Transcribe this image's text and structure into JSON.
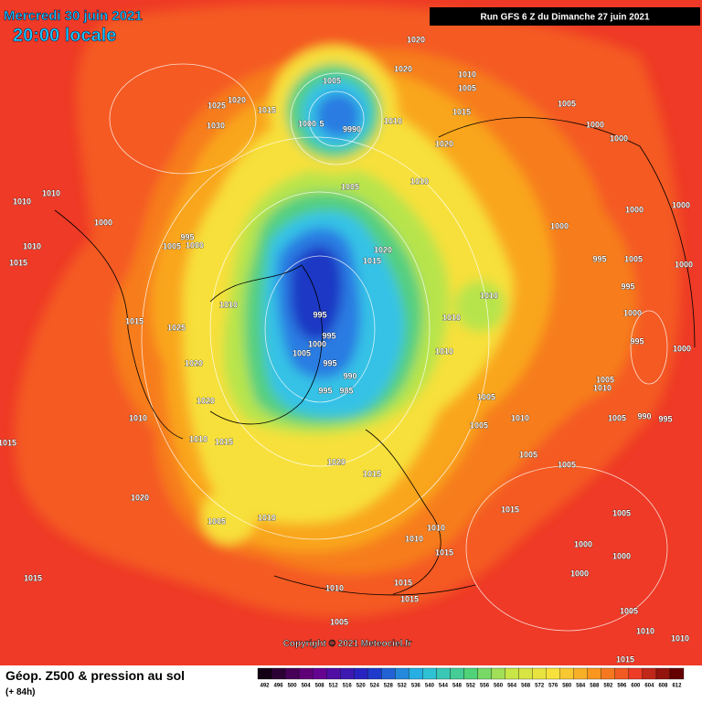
{
  "header": {
    "date": "Mercredi 30 juin 2021",
    "time": "20:00 locale",
    "run": "Run GFS 6 Z du Dimanche 27 juin 2021"
  },
  "isobar_labels": [
    "1020",
    "1020",
    "1010",
    "1005",
    "1005",
    "1025",
    "1020",
    "1015",
    "1030",
    "1000",
    "5",
    "9990",
    "1010",
    "1015",
    "1005",
    "1000",
    "1000",
    "1020",
    "1010",
    "1005",
    "1010",
    "1010",
    "1000",
    "995",
    "1005",
    "1000",
    "1010",
    "1015",
    "1000",
    "1000",
    "1000",
    "1020",
    "1015",
    "995",
    "1005",
    "1000",
    "995",
    "1010",
    "1010",
    "1015",
    "1025",
    "995",
    "1010",
    "1000",
    "995",
    "1000",
    "1005",
    "995",
    "1000",
    "1010",
    "1020",
    "995",
    "990",
    "1005",
    "1010",
    "995",
    "985",
    "1005",
    "1020",
    "1010",
    "1010",
    "1005",
    "990",
    "995",
    "1010",
    "1015",
    "1015",
    "1005",
    "1020",
    "1005",
    "1015",
    "1005",
    "1020",
    "1015",
    "1005",
    "1010",
    "1010",
    "1005",
    "1000",
    "1000",
    "1015",
    "1010",
    "1000",
    "1015",
    "1010",
    "1015",
    "1015",
    "1005",
    "1010",
    "1005",
    "1010",
    "1015"
  ],
  "copyright": "Copyright © 2021 Meteociel.fr",
  "legend": {
    "title": "Géop. Z500 & pression au sol",
    "lead": "(+ 84h)",
    "levels": [
      492,
      496,
      500,
      504,
      508,
      512,
      516,
      520,
      524,
      528,
      532,
      536,
      540,
      544,
      548,
      552,
      556,
      560,
      564,
      568,
      572,
      576,
      580,
      584,
      588,
      592,
      596,
      600,
      604,
      608,
      612
    ]
  }
}
